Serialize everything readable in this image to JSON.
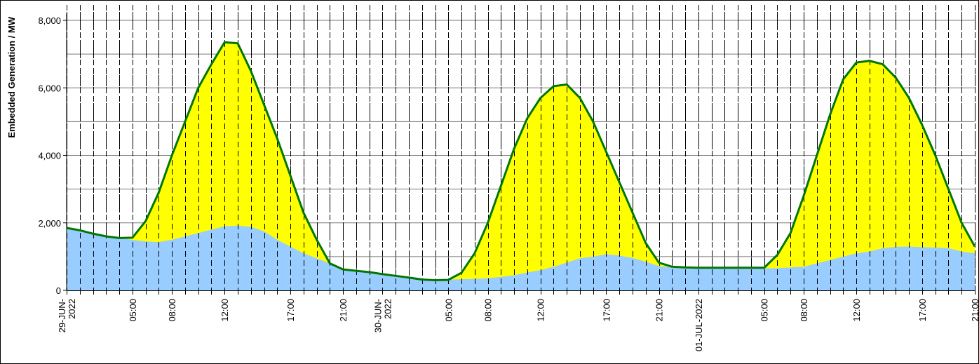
{
  "chart_data": {
    "type": "area",
    "title": "",
    "xlabel": "",
    "ylabel": "Embedded Generation / MW",
    "ylim": [
      0,
      8000
    ],
    "yticks": [
      0,
      2000,
      4000,
      6000,
      8000
    ],
    "ytick_labels": [
      "0",
      "2,000",
      "4,000",
      "6,000",
      "8,000"
    ],
    "y_gridlines": [
      1000,
      2000,
      3000,
      4000,
      5000,
      6000,
      7000,
      8000
    ],
    "x_range_hours": [
      0,
      69
    ],
    "x_tick_labels": [
      {
        "hour": 0,
        "label": "29-JUN-2022"
      },
      {
        "hour": 5,
        "label": "05:00"
      },
      {
        "hour": 8,
        "label": "08:00"
      },
      {
        "hour": 12,
        "label": "12:00"
      },
      {
        "hour": 17,
        "label": "17:00"
      },
      {
        "hour": 21,
        "label": "21:00"
      },
      {
        "hour": 24,
        "label": "30-JUN-2022"
      },
      {
        "hour": 29,
        "label": "05:00"
      },
      {
        "hour": 32,
        "label": "08:00"
      },
      {
        "hour": 36,
        "label": "12:00"
      },
      {
        "hour": 41,
        "label": "17:00"
      },
      {
        "hour": 45,
        "label": "21:00"
      },
      {
        "hour": 48,
        "label": "01-JUL-2022"
      },
      {
        "hour": 53,
        "label": "05:00"
      },
      {
        "hour": 56,
        "label": "08:00"
      },
      {
        "hour": 60,
        "label": "12:00"
      },
      {
        "hour": 65,
        "label": "17:00"
      },
      {
        "hour": 69,
        "label": "21:00"
      }
    ],
    "grid": true,
    "legend": "none",
    "colors": {
      "solar_fill": "#FFFF00",
      "wind_fill": "#99CCFF",
      "total_line": "#007700"
    },
    "x_hours": [
      0,
      1,
      2,
      3,
      4,
      5,
      6,
      7,
      8,
      9,
      10,
      11,
      12,
      13,
      14,
      15,
      16,
      17,
      18,
      19,
      20,
      21,
      22,
      23,
      24,
      25,
      26,
      27,
      28,
      29,
      30,
      31,
      32,
      33,
      34,
      35,
      36,
      37,
      38,
      39,
      40,
      41,
      42,
      43,
      44,
      45,
      46,
      47,
      48,
      49,
      50,
      51,
      52,
      53,
      54,
      55,
      56,
      57,
      58,
      59,
      60,
      61,
      62,
      63,
      64,
      65,
      66,
      67,
      68,
      69
    ],
    "series": [
      {
        "values": [
          1850,
          1780,
          1680,
          1600,
          1550,
          1500,
          1450,
          1430,
          1500,
          1600,
          1700,
          1800,
          1900,
          1920,
          1880,
          1750,
          1500,
          1300,
          1100,
          950,
          800,
          650,
          580,
          540,
          480,
          440,
          400,
          360,
          320,
          320,
          330,
          340,
          360,
          400,
          450,
          530,
          600,
          700,
          820,
          950,
          1000,
          1070,
          1030,
          960,
          850,
          720,
          680,
          660,
          650,
          650,
          650,
          650,
          650,
          650,
          660,
          680,
          700,
          800,
          900,
          1000,
          1100,
          1150,
          1250,
          1290,
          1300,
          1280,
          1270,
          1250,
          1150,
          1100
        ]
      },
      {
        "values": [
          1850,
          1780,
          1680,
          1600,
          1550,
          1560,
          2050,
          2900,
          4000,
          5000,
          6000,
          6700,
          7350,
          7320,
          6500,
          5500,
          4500,
          3400,
          2300,
          1500,
          800,
          620,
          580,
          540,
          480,
          430,
          380,
          320,
          300,
          310,
          520,
          1100,
          2000,
          3100,
          4200,
          5100,
          5700,
          6050,
          6100,
          5700,
          5000,
          4100,
          3200,
          2300,
          1400,
          820,
          700,
          680,
          670,
          670,
          670,
          670,
          670,
          670,
          1050,
          1700,
          2800,
          4000,
          5200,
          6250,
          6750,
          6800,
          6700,
          6300,
          5700,
          4900,
          4000,
          3000,
          2000,
          1300
        ]
      }
    ]
  }
}
